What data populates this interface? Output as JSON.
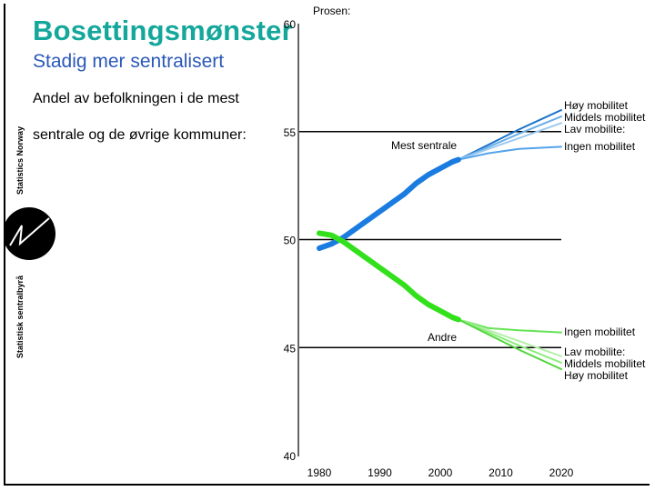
{
  "slide": {
    "title": "Bosettingsmønster",
    "subtitle": "Stadig mer sentralisert",
    "body_line1": "Andel av befolkningen i de mest",
    "body_line2": "sentrale og de øvrige kommuner:",
    "logo_text_top": "Statistics Norway",
    "logo_text_bottom": "Statistisk sentralbyrå"
  },
  "chart_data": {
    "type": "line",
    "ylabel": "Prosen:",
    "xlim": [
      1980,
      2020
    ],
    "ylim": [
      40,
      60
    ],
    "x_ticks": [
      1980,
      1990,
      2000,
      2010,
      2020
    ],
    "y_ticks": [
      40,
      45,
      50,
      55,
      60
    ],
    "grid_y": [
      45,
      50,
      55
    ],
    "annotations": {
      "central": "Mest sentrale",
      "other": "Andre"
    },
    "historical": [
      {
        "name": "Mest sentrale",
        "color": "#1a7be0",
        "x": [
          1980,
          1982,
          1984,
          1986,
          1988,
          1990,
          1992,
          1994,
          1996,
          1998,
          2000,
          2002,
          2003
        ],
        "y": [
          49.6,
          49.8,
          50.1,
          50.5,
          50.9,
          51.3,
          51.7,
          52.1,
          52.6,
          53.0,
          53.3,
          53.6,
          53.7
        ]
      },
      {
        "name": "Andre",
        "color": "#33e01c",
        "x": [
          1980,
          1982,
          1984,
          1986,
          1988,
          1990,
          1992,
          1994,
          1996,
          1998,
          2000,
          2002,
          2003
        ],
        "y": [
          50.3,
          50.2,
          49.9,
          49.5,
          49.1,
          48.7,
          48.3,
          47.9,
          47.4,
          47.0,
          46.7,
          46.4,
          46.3
        ]
      }
    ],
    "projections_central": [
      {
        "name": "Høy mobilitet",
        "color": "#1a72c8",
        "x": [
          2003,
          2008,
          2013,
          2020
        ],
        "y": [
          53.7,
          54.4,
          55.1,
          56.0
        ]
      },
      {
        "name": "Middels mobilitet",
        "color": "#6aaee8",
        "x": [
          2003,
          2008,
          2013,
          2020
        ],
        "y": [
          53.7,
          54.3,
          54.9,
          55.7
        ]
      },
      {
        "name": "Lav mobilite:",
        "color": "#9ccaf0",
        "x": [
          2003,
          2008,
          2013,
          2020
        ],
        "y": [
          53.7,
          54.2,
          54.7,
          55.4
        ]
      },
      {
        "name": "Ingen mobilitet",
        "color": "#55a3ea",
        "x": [
          2003,
          2008,
          2013,
          2020
        ],
        "y": [
          53.7,
          54.0,
          54.2,
          54.3
        ]
      }
    ],
    "projections_other": [
      {
        "name": "Ingen mobilitet",
        "color": "#66e355",
        "x": [
          2003,
          2008,
          2013,
          2020
        ],
        "y": [
          46.3,
          45.9,
          45.8,
          45.7
        ]
      },
      {
        "name": "Lav mobilite:",
        "color": "#b3f0a8",
        "x": [
          2003,
          2008,
          2013,
          2020
        ],
        "y": [
          46.3,
          45.8,
          45.3,
          44.6
        ]
      },
      {
        "name": "Middels mobilitet",
        "color": "#8ded7e",
        "x": [
          2003,
          2008,
          2013,
          2020
        ],
        "y": [
          46.3,
          45.7,
          45.1,
          44.3
        ]
      },
      {
        "name": "Høy mobilitet",
        "color": "#4fd63a",
        "x": [
          2003,
          2008,
          2013,
          2020
        ],
        "y": [
          46.3,
          45.6,
          44.9,
          44.0
        ]
      }
    ]
  }
}
